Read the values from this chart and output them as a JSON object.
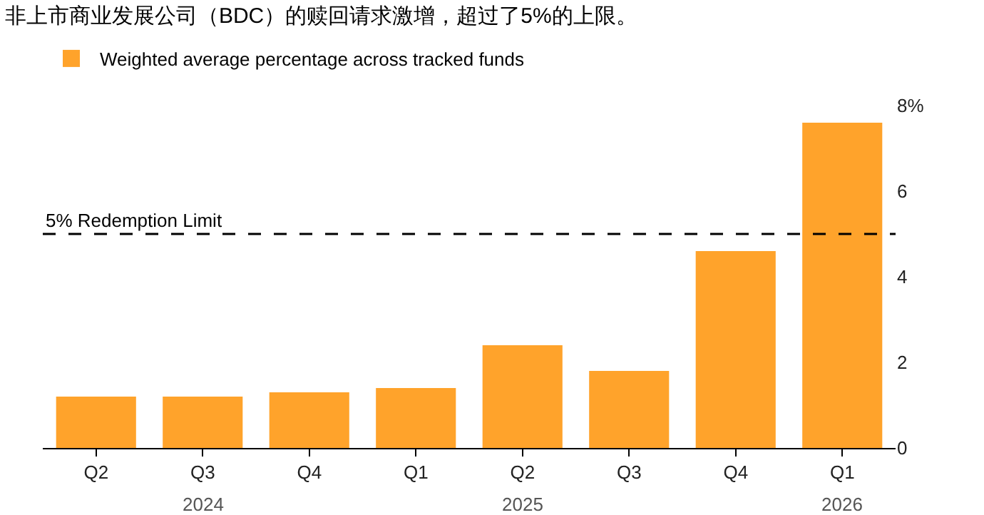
{
  "chart_data": {
    "type": "bar",
    "title": "非上市商业发展公司（BDC）的赎回请求激增，超过了5%的上限。",
    "categories": [
      "Q2",
      "Q3",
      "Q4",
      "Q1",
      "Q2",
      "Q3",
      "Q4",
      "Q1"
    ],
    "series": [
      {
        "name": "Weighted average percentage across tracked funds",
        "color": "#ffa32b",
        "values": [
          1.2,
          1.2,
          1.3,
          1.4,
          2.4,
          1.8,
          4.6,
          7.6
        ]
      }
    ],
    "ylim": [
      0,
      8
    ],
    "yticks": [
      0,
      2,
      4,
      6,
      {
        "value": 8,
        "label": "8%"
      }
    ],
    "ref_lines": [
      {
        "axis": "y",
        "value": 5,
        "label": "5% Redemption Limit",
        "line_style": "dashed",
        "color": "#000000"
      }
    ],
    "annotations": [
      "2024",
      "2025",
      "2026"
    ],
    "grid": false,
    "legend": "top left"
  }
}
